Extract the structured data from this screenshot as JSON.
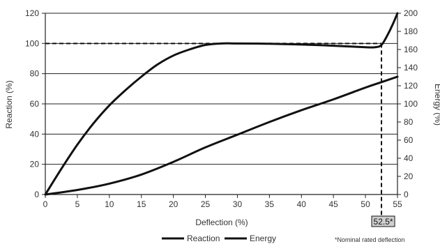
{
  "chart_data": {
    "type": "line",
    "xlabel": "Deflection (%)",
    "ylabel": "Reaction (%)",
    "y2label": "Energy (%)",
    "xlim": [
      0,
      55
    ],
    "ylim": [
      0,
      120
    ],
    "y2lim": [
      0,
      200
    ],
    "x_ticks": [
      "0",
      "5",
      "10",
      "15",
      "20",
      "25",
      "30",
      "35",
      "40",
      "45",
      "50",
      "55"
    ],
    "y_ticks": [
      "0",
      "20",
      "40",
      "60",
      "80",
      "100",
      "120"
    ],
    "y2_ticks": [
      "0",
      "20",
      "40",
      "60",
      "80",
      "100",
      "120",
      "140",
      "160",
      "180",
      "200"
    ],
    "grid": "horizontal",
    "legend": {
      "placement": "bottom-center"
    },
    "reference_line": {
      "y": 100,
      "style": "dashed"
    },
    "marker": {
      "x": 52.5,
      "label": "52.5*",
      "style": "dashed"
    },
    "footnote": "*Nominal rated deflection",
    "series": [
      {
        "name": "Reaction",
        "axis": "left",
        "x": [
          0,
          2.5,
          5,
          7.5,
          10,
          12.5,
          15,
          17.5,
          20,
          22.5,
          25,
          27.5,
          30,
          35,
          40,
          45,
          50,
          51.5,
          52.5,
          53.5,
          54.3,
          55
        ],
        "y": [
          0,
          17,
          33,
          47,
          59,
          69,
          78,
          86,
          92,
          96,
          99,
          100,
          100,
          99.8,
          99.3,
          98.5,
          97.5,
          97.5,
          99,
          106,
          113,
          120
        ]
      },
      {
        "name": "Energy",
        "axis": "right",
        "x": [
          0,
          5,
          10,
          15,
          20,
          25,
          30,
          35,
          40,
          45,
          50,
          52.5,
          55
        ],
        "y": [
          0,
          5,
          12,
          22,
          36,
          52,
          66,
          80,
          93,
          105,
          118,
          124,
          130
        ]
      }
    ]
  }
}
